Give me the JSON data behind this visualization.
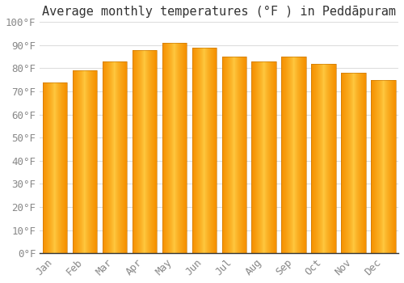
{
  "title": "Average monthly temperatures (°F ) in Peddāpuram",
  "months": [
    "Jan",
    "Feb",
    "Mar",
    "Apr",
    "May",
    "Jun",
    "Jul",
    "Aug",
    "Sep",
    "Oct",
    "Nov",
    "Dec"
  ],
  "values": [
    74,
    79,
    83,
    88,
    91,
    89,
    85,
    83,
    85,
    82,
    78,
    75
  ],
  "ylim": [
    0,
    100
  ],
  "yticks": [
    0,
    10,
    20,
    30,
    40,
    50,
    60,
    70,
    80,
    90,
    100
  ],
  "ytick_labels": [
    "0°F",
    "10°F",
    "20°F",
    "30°F",
    "40°F",
    "50°F",
    "60°F",
    "70°F",
    "80°F",
    "90°F",
    "100°F"
  ],
  "background_color": "#FFFFFF",
  "grid_color": "#DDDDDD",
  "bar_color_center": "#FFCC44",
  "bar_color_edge": "#F59000",
  "tick_color": "#888888",
  "title_fontsize": 11,
  "tick_fontsize": 9,
  "bar_width": 0.82
}
